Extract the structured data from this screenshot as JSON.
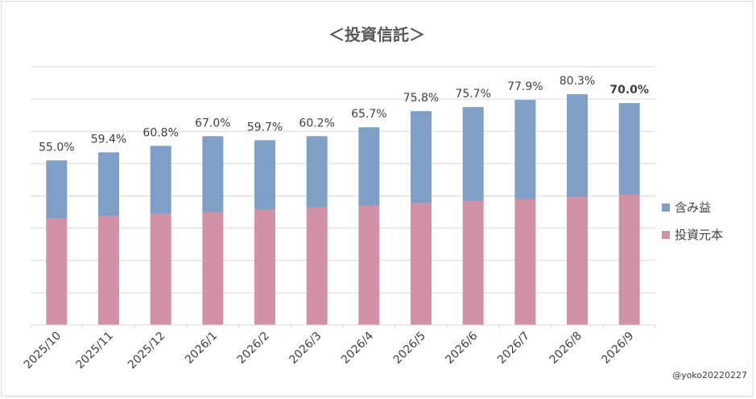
{
  "chart_data": {
    "type": "bar",
    "stacked": true,
    "title": "＜投資信託＞",
    "categories": [
      "2025/10",
      "2025/11",
      "2025/12",
      "2026/1",
      "2026/2",
      "2026/3",
      "2026/4",
      "2026/5",
      "2026/6",
      "2026/7",
      "2026/8",
      "2026/9"
    ],
    "series": [
      {
        "name": "投資元本",
        "color": "#d191a6",
        "values": [
          66,
          67.5,
          69,
          70,
          71.5,
          73,
          74,
          75.5,
          77,
          78,
          79.5,
          81
        ]
      },
      {
        "name": "含み益",
        "color": "#7f9fc6",
        "values": [
          36,
          39.5,
          42,
          47,
          43,
          44,
          48.5,
          57,
          58,
          61.5,
          63.5,
          56.5
        ]
      }
    ],
    "data_labels": [
      "55.0%",
      "59.4%",
      "60.8%",
      "67.0%",
      "59.7%",
      "60.2%",
      "65.7%",
      "75.8%",
      "75.7%",
      "77.9%",
      "80.3%",
      "70.0%"
    ],
    "bold_label_index": 11,
    "ylim": [
      0,
      160
    ],
    "ytick_count": 8,
    "y_axis_labels_shown": false,
    "grid": true,
    "legend_position": "right",
    "legend_order": [
      "含み益",
      "投資元本"
    ],
    "credit": "@yoko20220227"
  }
}
